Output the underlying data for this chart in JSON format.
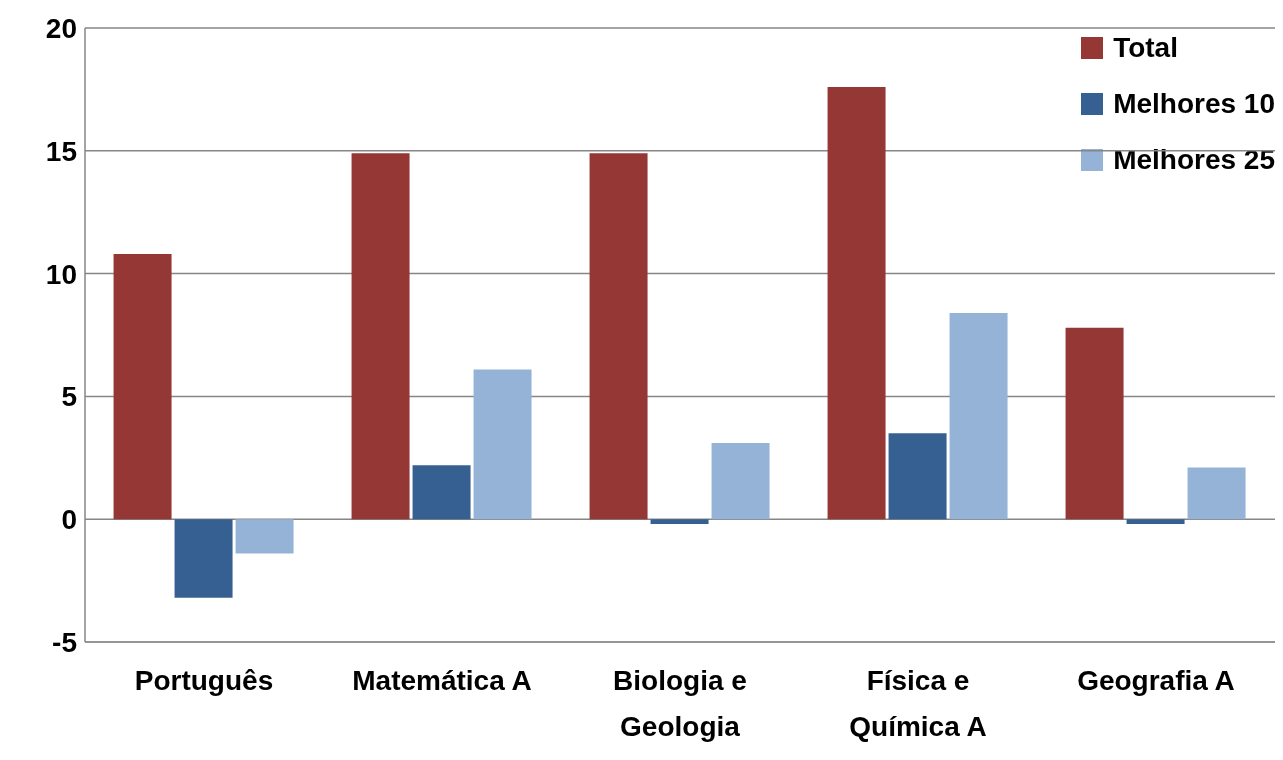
{
  "chart_data": {
    "type": "bar",
    "categories": [
      "Português",
      "Matemática A",
      "Biologia e Geologia",
      "Física e Química A",
      "Geografia A"
    ],
    "series": [
      {
        "name": "Total",
        "color": "#953735",
        "values": [
          10.8,
          14.9,
          14.9,
          17.6,
          7.8
        ]
      },
      {
        "name": "Melhores 10",
        "color": "#376092",
        "values": [
          -3.2,
          2.2,
          -0.2,
          3.5,
          -0.2
        ]
      },
      {
        "name": "Melhores 25",
        "color": "#95b3d7",
        "values": [
          -1.4,
          6.1,
          3.1,
          8.4,
          2.1
        ]
      }
    ],
    "ylim": [
      -5,
      20
    ],
    "yticks": [
      -5,
      0,
      5,
      10,
      15,
      20
    ],
    "grid": "y",
    "legend": "top right"
  }
}
